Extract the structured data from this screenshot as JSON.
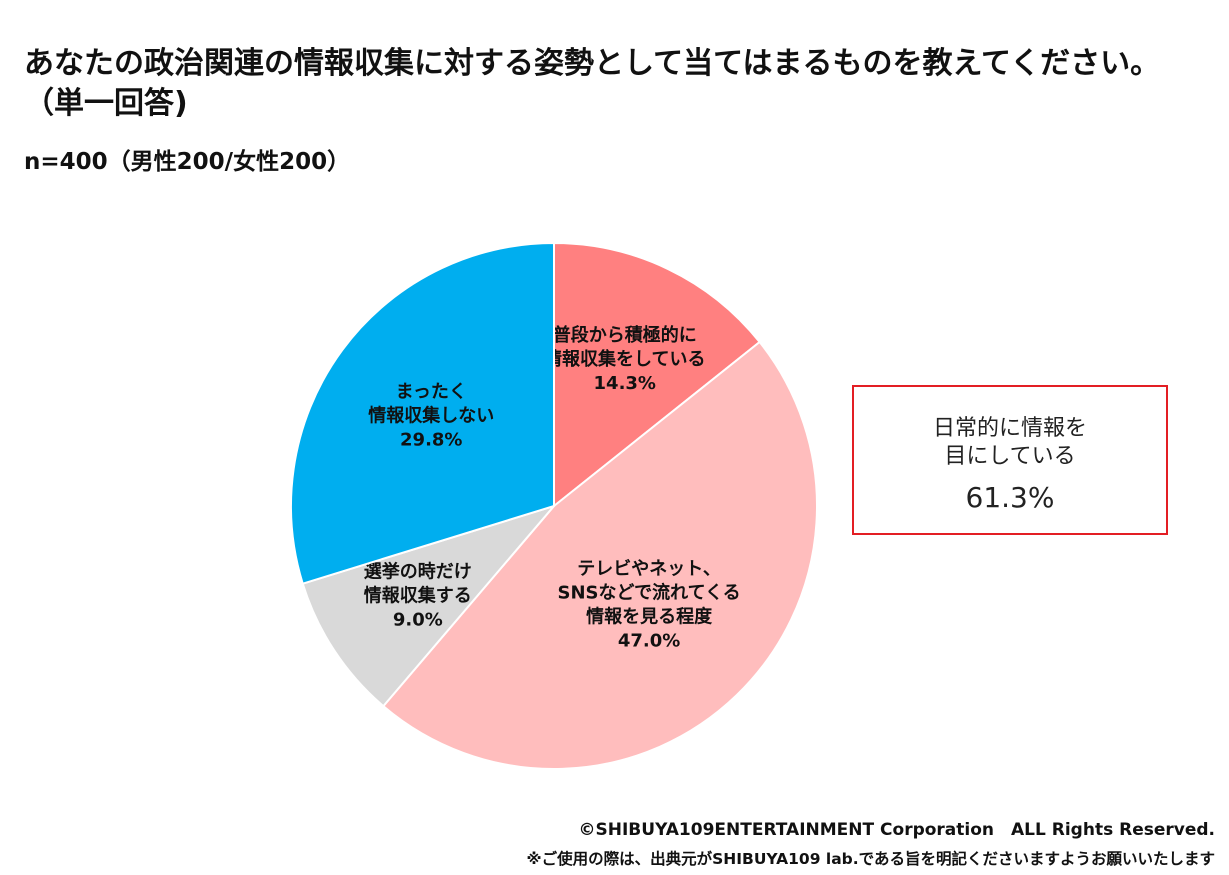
{
  "title": "あなたの政治関連の情報収集に対する姿勢として当てはまるものを教えてください。（単一回答)",
  "subtitle": "n=400（男性200/女性200）",
  "chart_data": {
    "type": "pie",
    "start": "12 o'clock, clockwise",
    "slices": [
      {
        "label": [
          "普段から積極的に",
          "情報収集をしている"
        ],
        "value": 14.3,
        "value_label": "14.3%",
        "color": "#ff8080"
      },
      {
        "label": [
          "テレビやネット、",
          "SNSなどで流れてくる",
          "情報を見る程度"
        ],
        "value": 47.0,
        "value_label": "47.0%",
        "color": "#ffbdbd"
      },
      {
        "label": [
          "選挙の時だけ",
          "情報収集する"
        ],
        "value": 9.0,
        "value_label": "9.0%",
        "color": "#d9d9d9"
      },
      {
        "label": [
          "まったく",
          "情報収集しない"
        ],
        "value": 29.8,
        "value_label": "29.8%",
        "color": "#00aeef"
      }
    ]
  },
  "callout": {
    "text": "日常的に情報を\n目にしている",
    "value": "61.3%",
    "border_color": "#e31e24"
  },
  "footer": {
    "copyright": "©SHIBUYA109ENTERTAINMENT Corporation　ALL Rights Reserved.",
    "notice": "※ご使用の際は、出典元がSHIBUYA109 lab.である旨を明記くださいますようお願いいたします"
  }
}
